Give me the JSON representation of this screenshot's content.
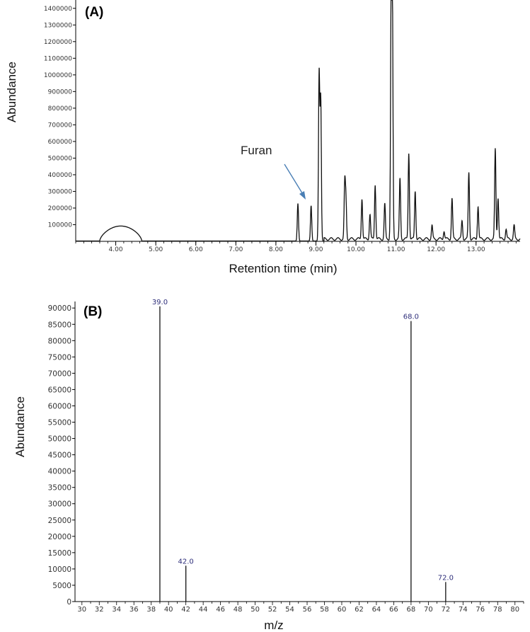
{
  "chart_data": [
    {
      "type": "line",
      "panel_label": "(A)",
      "xlabel": "Retention time (min)",
      "ylabel": "Abundance",
      "x_tick_labels": [
        "4.00",
        "5.00",
        "6.00",
        "7.00",
        "8.00",
        "9.00",
        "10.00",
        "11.00",
        "12.00",
        "13.00"
      ],
      "y_tick_labels": [
        "100000",
        "200000",
        "300000",
        "400000",
        "500000",
        "600000",
        "700000",
        "800000",
        "900000",
        "1000000",
        "1100000",
        "1200000",
        "1300000",
        "1400000"
      ],
      "xlim": [
        3.0,
        14.1
      ],
      "ylim": [
        0,
        1450000
      ],
      "annotation": {
        "text": "Furan",
        "points_to_x": 8.88
      },
      "baseline_hump": {
        "x_start": 3.6,
        "x_end": 4.65,
        "height": 90000
      },
      "peaks": [
        {
          "x": 8.55,
          "y": 225000
        },
        {
          "x": 8.88,
          "y": 212000
        },
        {
          "x": 9.08,
          "y": 1010000
        },
        {
          "x": 9.12,
          "y": 850000
        },
        {
          "x": 9.72,
          "y": 330000
        },
        {
          "x": 9.75,
          "y": 220000
        },
        {
          "x": 10.15,
          "y": 245000
        },
        {
          "x": 10.35,
          "y": 150000
        },
        {
          "x": 10.48,
          "y": 330000
        },
        {
          "x": 10.72,
          "y": 210000
        },
        {
          "x": 10.88,
          "y": 1450000
        },
        {
          "x": 10.91,
          "y": 1350000
        },
        {
          "x": 11.1,
          "y": 360000
        },
        {
          "x": 11.32,
          "y": 520000
        },
        {
          "x": 11.48,
          "y": 290000
        },
        {
          "x": 11.9,
          "y": 80000
        },
        {
          "x": 12.2,
          "y": 50000
        },
        {
          "x": 12.4,
          "y": 245000
        },
        {
          "x": 12.65,
          "y": 110000
        },
        {
          "x": 12.82,
          "y": 400000
        },
        {
          "x": 13.05,
          "y": 200000
        },
        {
          "x": 13.48,
          "y": 540000
        },
        {
          "x": 13.55,
          "y": 250000
        },
        {
          "x": 13.75,
          "y": 60000
        },
        {
          "x": 13.95,
          "y": 80000
        }
      ]
    },
    {
      "type": "bar",
      "panel_label": "(B)",
      "xlabel": "m/z",
      "ylabel": "Abundance",
      "x_tick_labels": [
        "30",
        "32",
        "34",
        "36",
        "38",
        "40",
        "42",
        "44",
        "46",
        "48",
        "50",
        "52",
        "54",
        "56",
        "58",
        "60",
        "62",
        "64",
        "66",
        "68",
        "70",
        "72",
        "74",
        "76",
        "78",
        "80"
      ],
      "y_tick_labels": [
        "0",
        "5000",
        "10000",
        "15000",
        "20000",
        "25000",
        "30000",
        "35000",
        "40000",
        "45000",
        "50000",
        "55000",
        "60000",
        "65000",
        "70000",
        "75000",
        "80000",
        "85000",
        "90000"
      ],
      "xlim": [
        29.2,
        81
      ],
      "ylim": [
        0,
        92000
      ],
      "series": [
        {
          "values": [
            {
              "x": 39.0,
              "y": 90500,
              "label": "39.0"
            },
            {
              "x": 42.0,
              "y": 11000,
              "label": "42.0"
            },
            {
              "x": 68.0,
              "y": 86000,
              "label": "68.0"
            },
            {
              "x": 72.0,
              "y": 6000,
              "label": "72.0"
            }
          ]
        }
      ]
    }
  ]
}
